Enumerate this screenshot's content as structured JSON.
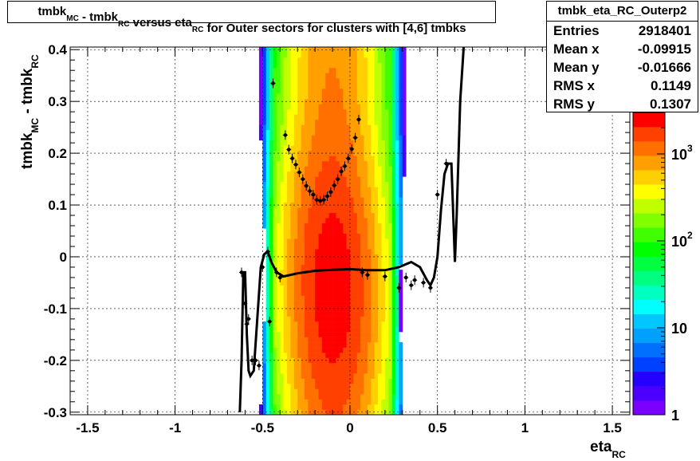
{
  "title": {
    "parts": [
      {
        "text": "tmbk",
        "sub": "MC"
      },
      {
        "text": " - tmbk",
        "sub": "RC"
      },
      {
        "text": " versus eta",
        "sub": "RC"
      },
      {
        "text": " for Outer sectors for clusters with [4,6] tmbks",
        "sub": ""
      }
    ]
  },
  "stats": {
    "name": "tmbk_eta_RC_Outerp2",
    "rows": [
      {
        "label": "Entries",
        "value": "2918401"
      },
      {
        "label": "Mean x",
        "value": "-0.09915"
      },
      {
        "label": "Mean y",
        "value": "-0.01666"
      },
      {
        "label": "RMS x",
        "value": "0.1149"
      },
      {
        "label": "RMS y",
        "value": "0.1307"
      }
    ]
  },
  "colors": {
    "palette": [
      "#7a00ff",
      "#4b00ff",
      "#2600ff",
      "#0040ff",
      "#0070ff",
      "#00a0ff",
      "#00c8ff",
      "#00ffff",
      "#00ffc0",
      "#00ff80",
      "#00ff40",
      "#00ff00",
      "#40ff00",
      "#80ff00",
      "#c0ff00",
      "#ffff00",
      "#ffd000",
      "#ffa000",
      "#ff7000",
      "#ff4000",
      "#ff0000"
    ],
    "profile": "#000000"
  },
  "chart_data": {
    "type": "heatmap",
    "title": "tmbk_MC - tmbk_RC versus eta_RC for Outer sectors for clusters with [4,6] tmbks",
    "xlabel": {
      "text": "eta",
      "sub": "RC"
    },
    "ylabel": {
      "text": "tmbk",
      "sub": "MC",
      "text2": " - tmbk",
      "sub2": "RC"
    },
    "xlim": [
      -1.6,
      1.6
    ],
    "ylim": [
      -0.305,
      0.405
    ],
    "x_ticks": [
      -1.5,
      -1,
      -0.5,
      0,
      0.5,
      1,
      1.5
    ],
    "x_tick_labels": [
      "-1.5",
      "-1",
      "-0.5",
      "0",
      "0.5",
      "1",
      "1.5"
    ],
    "y_ticks": [
      -0.3,
      -0.2,
      -0.1,
      0,
      0.1,
      0.2,
      0.3,
      0.4
    ],
    "y_tick_labels": [
      "-0.3",
      "-0.2",
      "-0.1",
      "0",
      "0.1",
      "0.2",
      "0.3",
      "0.4"
    ],
    "grid": true,
    "colorbar": {
      "scale": "log",
      "min": 1,
      "max": 3000,
      "tick_labels": [
        {
          "base": "1",
          "exp": ""
        },
        {
          "base": "10",
          "exp": ""
        },
        {
          "base": "10",
          "exp": "2"
        },
        {
          "base": "10",
          "exp": "3"
        }
      ]
    },
    "density_model": {
      "x_center": -0.09915,
      "x_width_core": 0.155,
      "x_edge": 0.33,
      "y_center": -0.06,
      "y_tilt": 0.35
    },
    "profile_points": [
      {
        "x": -0.62,
        "y": -0.03
      },
      {
        "x": -0.6,
        "y": -0.09
      },
      {
        "x": -0.58,
        "y": -0.12
      },
      {
        "x": -0.56,
        "y": -0.2
      },
      {
        "x": -0.54,
        "y": -0.2
      },
      {
        "x": -0.52,
        "y": -0.21
      },
      {
        "x": -0.5,
        "y": -0.02
      },
      {
        "x": -0.47,
        "y": 0.01
      },
      {
        "x": -0.44,
        "y": 0.335
      },
      {
        "x": -0.42,
        "y": -0.03
      },
      {
        "x": -0.4,
        "y": -0.04
      },
      {
        "x": -0.37,
        "y": 0.235
      },
      {
        "x": -0.35,
        "y": 0.207
      },
      {
        "x": -0.33,
        "y": 0.19
      },
      {
        "x": -0.31,
        "y": 0.178
      },
      {
        "x": -0.29,
        "y": 0.163
      },
      {
        "x": -0.27,
        "y": 0.15
      },
      {
        "x": -0.25,
        "y": 0.137
      },
      {
        "x": -0.23,
        "y": 0.127
      },
      {
        "x": -0.21,
        "y": 0.12
      },
      {
        "x": -0.19,
        "y": 0.11
      },
      {
        "x": -0.17,
        "y": 0.108
      },
      {
        "x": -0.15,
        "y": 0.11
      },
      {
        "x": -0.13,
        "y": 0.117
      },
      {
        "x": -0.11,
        "y": 0.125
      },
      {
        "x": -0.09,
        "y": 0.138
      },
      {
        "x": -0.07,
        "y": 0.15
      },
      {
        "x": -0.05,
        "y": 0.165
      },
      {
        "x": -0.03,
        "y": 0.175
      },
      {
        "x": -0.01,
        "y": 0.19
      },
      {
        "x": 0.01,
        "y": 0.208
      },
      {
        "x": 0.03,
        "y": 0.23
      },
      {
        "x": 0.05,
        "y": 0.265
      },
      {
        "x": 0.07,
        "y": -0.03
      },
      {
        "x": 0.1,
        "y": -0.035
      },
      {
        "x": 0.2,
        "y": -0.038
      },
      {
        "x": 0.32,
        "y": -0.04
      },
      {
        "x": 0.37,
        "y": -0.045
      },
      {
        "x": 0.42,
        "y": -0.05
      },
      {
        "x": 0.46,
        "y": -0.06
      },
      {
        "x": 0.5,
        "y": 0.12
      },
      {
        "x": 0.55,
        "y": 0.18
      },
      {
        "x": -0.59,
        "y": -0.13
      },
      {
        "x": -0.46,
        "y": -0.125
      },
      {
        "x": 0.35,
        "y": -0.055
      },
      {
        "x": 0.28,
        "y": -0.06
      }
    ],
    "fit_curve": [
      [
        -0.63,
        -0.3
      ],
      [
        -0.62,
        -0.2
      ],
      [
        -0.61,
        -0.03
      ],
      [
        -0.6,
        -0.03
      ],
      [
        -0.59,
        -0.15
      ],
      [
        -0.58,
        -0.22
      ],
      [
        -0.57,
        -0.23
      ],
      [
        -0.55,
        -0.22
      ],
      [
        -0.53,
        -0.12
      ],
      [
        -0.51,
        -0.02
      ],
      [
        -0.49,
        0.005
      ],
      [
        -0.47,
        0.01
      ],
      [
        -0.45,
        -0.01
      ],
      [
        -0.42,
        -0.03
      ],
      [
        -0.38,
        -0.038
      ],
      [
        -0.3,
        -0.032
      ],
      [
        -0.2,
        -0.027
      ],
      [
        -0.1,
        -0.025
      ],
      [
        0,
        -0.024
      ],
      [
        0.1,
        -0.026
      ],
      [
        0.2,
        -0.026
      ],
      [
        0.28,
        -0.02
      ],
      [
        0.35,
        -0.01
      ],
      [
        0.4,
        -0.02
      ],
      [
        0.44,
        -0.045
      ],
      [
        0.46,
        -0.055
      ],
      [
        0.48,
        -0.04
      ],
      [
        0.5,
        0.0
      ],
      [
        0.52,
        0.09
      ],
      [
        0.54,
        0.16
      ],
      [
        0.56,
        0.18
      ],
      [
        0.58,
        0.18
      ],
      [
        0.6,
        -0.01
      ],
      [
        0.61,
        0.08
      ],
      [
        0.63,
        0.3
      ],
      [
        0.65,
        0.42
      ]
    ]
  }
}
